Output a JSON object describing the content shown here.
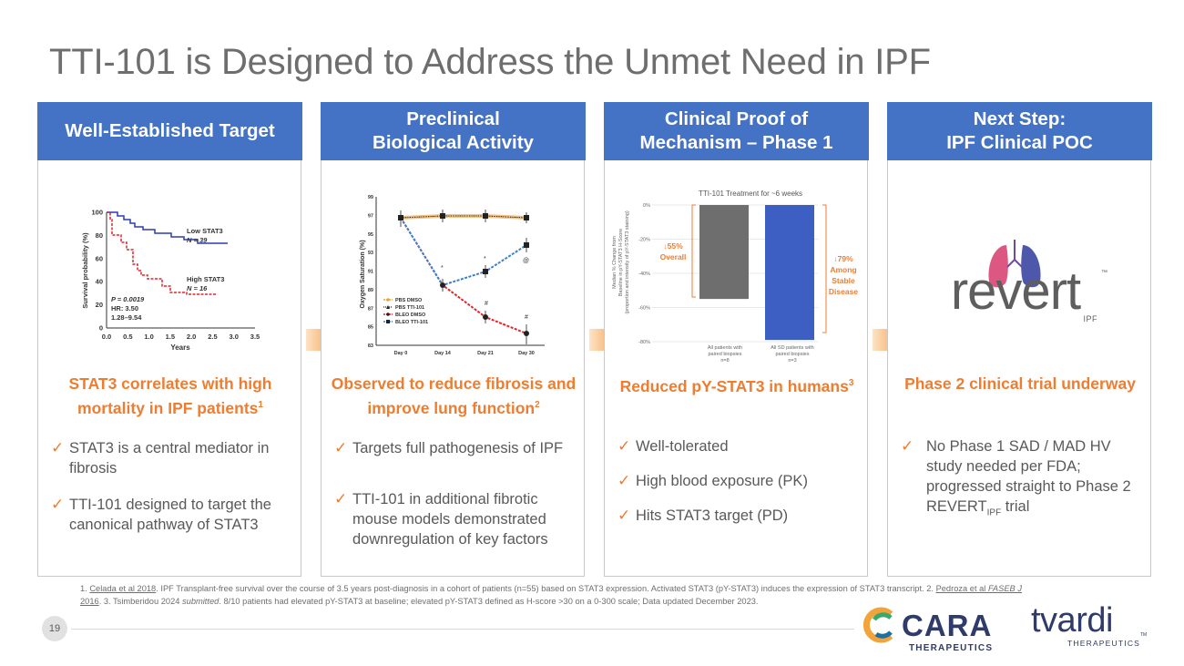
{
  "slide": {
    "title": "TTI-101 is Designed to Address the Unmet Need in IPF",
    "page_number": "19"
  },
  "cards": [
    {
      "heading": [
        "Well-Established Target"
      ],
      "subtitle": "STAT3 correlates with high mortality in IPF patients",
      "subtitle_sup": "1",
      "bullets": [
        "STAT3 is a central mediator in fibrosis",
        "TTI-101 designed to target the canonical pathway of STAT3"
      ]
    },
    {
      "heading": [
        "Preclinical",
        "Biological Activity"
      ],
      "subtitle": "Observed to reduce fibrosis and improve lung function",
      "subtitle_sup": "2",
      "bullets": [
        "Targets full pathogenesis of IPF",
        "TTI-101 in additional fibrotic mouse models demonstrated downregulation of key factors"
      ]
    },
    {
      "heading": [
        "Clinical Proof of",
        "Mechanism – Phase 1"
      ],
      "subtitle": "Reduced pY-STAT3 in humans",
      "subtitle_sup": "3",
      "bullets": [
        "Well-tolerated",
        "High blood exposure (PK)",
        "Hits STAT3 target (PD)"
      ]
    },
    {
      "heading": [
        "Next Step:",
        "IPF Clinical POC"
      ],
      "subtitle": "Phase 2 clinical trial underway",
      "subtitle_sup": "",
      "bullets_prefix": "No Phase 1 SAD / MAD HV study needed per FDA; progressed straight to Phase 2 REVERT",
      "bullets_sub": "IPF",
      "bullets_suffix": " trial"
    }
  ],
  "km_chart": {
    "ylabel": "Survival probability (%)",
    "xlabel": "Years",
    "yticks": [
      "0",
      "20",
      "40",
      "60",
      "80",
      "100"
    ],
    "xticks": [
      "0.0",
      "0.5",
      "1.0",
      "1.5",
      "2.0",
      "2.5",
      "3.0",
      "3.5"
    ],
    "low_label": "Low STAT3",
    "low_n": "N = 39",
    "high_label": "High STAT3",
    "high_n": "N = 16",
    "stats": [
      "P = 0.0019",
      "HR: 3.50",
      "1.28–9.54"
    ],
    "low_color": "#2a3db5",
    "high_color": "#e0262b"
  },
  "o2_chart": {
    "ylabel": "Oxygen Saturation (%)",
    "yticks": [
      "83",
      "85",
      "87",
      "89",
      "91",
      "93",
      "95",
      "97",
      "99"
    ],
    "xticks": [
      "Day 0",
      "Day 14",
      "Day 21",
      "Day 30"
    ],
    "legend": [
      "PBS DMSO",
      "PBS TTI-101",
      "BLEO DMSO",
      "BLEO TTI-101"
    ],
    "marks": [
      "*",
      "*",
      "#",
      "#",
      "@"
    ]
  },
  "bar_chart": {
    "title": "TTI-101 Treatment for ~6 weeks",
    "ylabel": [
      "Median % Change from",
      "Baseline in pY-STAT3 H-Score",
      "(proportion and intensity of pY-STAT3 staining)"
    ],
    "yticks": [
      "0%",
      "-20%",
      "-40%",
      "-60%",
      "-80%"
    ],
    "bars": [
      {
        "label": [
          "All patients with",
          "paired biopsies",
          "n=8"
        ],
        "value": -55,
        "color": "#6e6e6e"
      },
      {
        "label": [
          "All SD patients with",
          "paired biopsies",
          "n=3"
        ],
        "value": -79,
        "color": "#3d5fc4"
      }
    ],
    "callout_left": [
      "↓55%",
      "Overall"
    ],
    "callout_right": [
      "↓79%",
      "Among",
      "Stable",
      "Disease"
    ]
  },
  "revert_logo": {
    "word": "revert",
    "tm": "™",
    "sub": "IPF"
  },
  "footnote": {
    "ref1": "Celada et al 2018",
    "text1": ". IPF Transplant-free survival over the course of 3.5 years post-diagnosis in a cohort of patients (n=55) based on STAT3 expression. Activated STAT3 (pY-STAT3) induces the expression of STAT3 transcript. 2. ",
    "ref2": "Pedroza et al ",
    "ref2_journal": "FASEB J",
    "ref2_year": " 2016",
    "text2": ". 3. Tsimberidou 2024 ",
    "text2_it": "submitted",
    "text3": ". 8/10 patients had elevated pY-STAT3 at baseline; elevated pY-STAT3 defined as H-score >30 on a 0-300 scale; Data updated December 2023.",
    "prefix": "1. "
  },
  "logos": {
    "cara": "CARA",
    "cara_sub": "THERAPEUTICS",
    "tvardi": "tvardi",
    "tvardi_sub": "THERAPEUTICS",
    "tvardi_tm": "TM"
  },
  "colors": {
    "accent": "#4472c4",
    "orange": "#ed7d31",
    "text": "#595959"
  }
}
